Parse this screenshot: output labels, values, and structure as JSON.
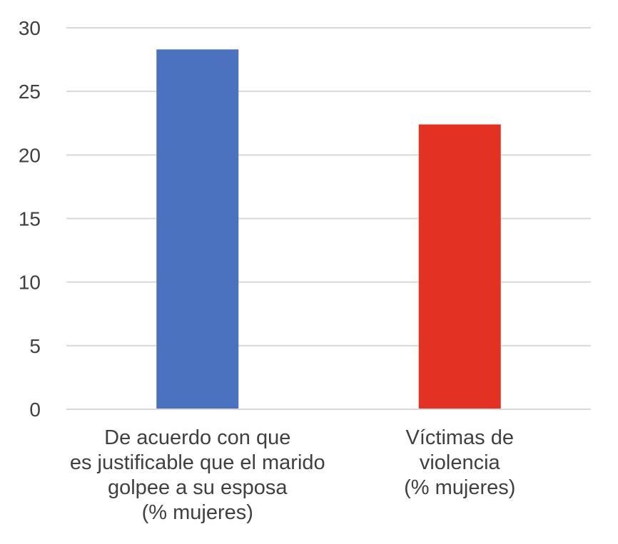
{
  "chart_data": {
    "type": "bar",
    "title": "",
    "xlabel": "",
    "ylabel": "",
    "ylim": [
      0,
      30
    ],
    "yticks": [
      0,
      5,
      10,
      15,
      20,
      25,
      30
    ],
    "grid": true,
    "categories": [
      [
        "De acuerdo con que",
        "es justificable que el marido",
        "golpee a su esposa",
        "(% mujeres)"
      ],
      [
        "Víctimas de",
        "violencia",
        "(% mujeres)"
      ]
    ],
    "values": [
      28.3,
      22.4
    ],
    "colors": [
      "#4a72be",
      "#e33224"
    ]
  }
}
